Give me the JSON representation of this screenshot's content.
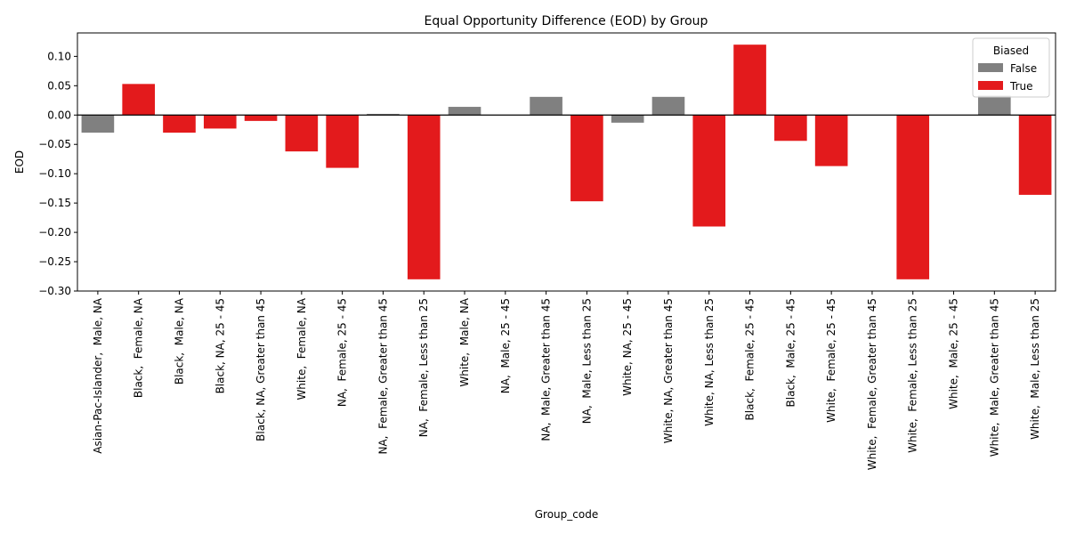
{
  "chart_data": {
    "type": "bar",
    "title": "Equal Opportunity Difference (EOD) by Group",
    "xlabel": "Group_code",
    "ylabel": "EOD",
    "ylim": [
      -0.3,
      0.14
    ],
    "yticks": [
      -0.3,
      -0.25,
      -0.2,
      -0.15,
      -0.1,
      -0.05,
      0.0,
      0.05,
      0.1
    ],
    "ytick_labels": [
      "−0.30",
      "−0.25",
      "−0.20",
      "−0.15",
      "−0.10",
      "−0.05",
      "0.00",
      "0.05",
      "0.10"
    ],
    "grid": false,
    "legend": {
      "title": "Biased",
      "placement": "top-right",
      "entries": [
        {
          "label": "False",
          "color": "#808080"
        },
        {
          "label": "True",
          "color": "#e31a1c"
        }
      ]
    },
    "colors": {
      "False": "#808080",
      "True": "#e31a1c"
    },
    "categories": [
      "Asian-Pac-Islander,  Male, NA",
      "Black,  Female, NA",
      "Black,  Male, NA",
      "Black, NA, 25 - 45",
      "Black, NA, Greater than 45",
      "White,  Female, NA",
      "NA,  Female, 25 - 45",
      "NA,  Female, Greater than 45",
      "NA,  Female, Less than 25",
      "White,  Male, NA",
      "NA,  Male, 25 - 45",
      "NA,  Male, Greater than 45",
      "NA,  Male, Less than 25",
      "White, NA, 25 - 45",
      "White, NA, Greater than 45",
      "White, NA, Less than 25",
      "Black,  Female, 25 - 45",
      "Black,  Male, 25 - 45",
      "White,  Female, 25 - 45",
      "White,  Female, Greater than 45",
      "White,  Female, Less than 25",
      "White,  Male, 25 - 45",
      "White,  Male, Greater than 45",
      "White,  Male, Less than 25"
    ],
    "values": [
      -0.03,
      0.053,
      -0.03,
      -0.023,
      -0.01,
      -0.062,
      -0.09,
      0.002,
      -0.28,
      0.014,
      0.0,
      0.031,
      -0.147,
      -0.013,
      0.031,
      -0.19,
      0.12,
      -0.044,
      -0.087,
      0.0,
      -0.28,
      0.0,
      0.033,
      -0.136
    ],
    "biased": [
      false,
      true,
      true,
      true,
      true,
      true,
      true,
      false,
      true,
      false,
      false,
      false,
      true,
      false,
      false,
      true,
      true,
      true,
      true,
      false,
      true,
      false,
      false,
      true
    ]
  }
}
